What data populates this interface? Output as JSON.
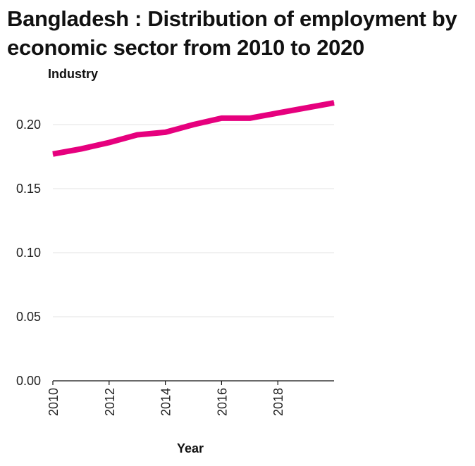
{
  "chart_data": {
    "type": "line",
    "title": "Bangladesh : Distribution of employment by economic sector from 2010 to 2020",
    "ylabel": "Industry",
    "xlabel": "Year",
    "x": [
      2010,
      2011,
      2012,
      2013,
      2014,
      2015,
      2016,
      2017,
      2018,
      2019,
      2020
    ],
    "series": [
      {
        "values": [
          0.177,
          0.181,
          0.186,
          0.192,
          0.194,
          0.2,
          0.205,
          0.205,
          0.209,
          0.213,
          0.217
        ]
      }
    ],
    "xlim": [
      2010,
      2020
    ],
    "ylim": [
      0,
      0.2
    ],
    "xticks": [
      "2010",
      "2012",
      "2014",
      "2016",
      "2018"
    ],
    "yticks": [
      "0.00",
      "0.05",
      "0.10",
      "0.15",
      "0.20"
    ],
    "grid": "horizontal",
    "line_color": "#e6007e",
    "grid_color": "#e3e3e3"
  }
}
